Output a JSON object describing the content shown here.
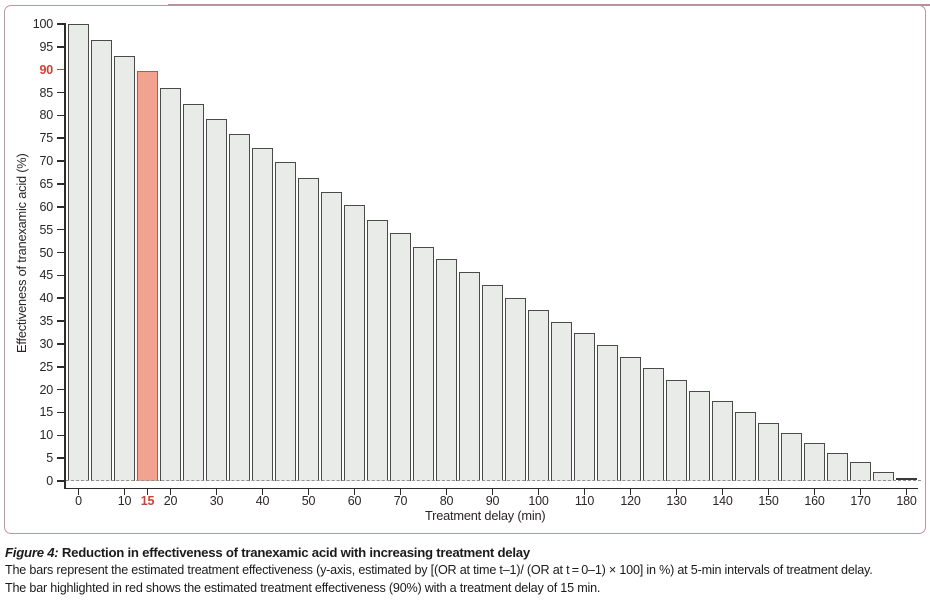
{
  "figure": {
    "caption": {
      "label": "Figure 4:",
      "title": " Reduction in effectiveness of tranexamic acid with increasing treatment delay",
      "line2": "The bars represent the estimated treatment effectiveness (y-axis, estimated by [(OR at time t–1)/ (OR at t = 0–1) × 100] in %) at 5-min intervals of treatment delay.",
      "line3": "The bar highlighted in red shows the estimated treatment effectiveness (90%) with a treatment delay of 15 min."
    }
  },
  "chart_data": {
    "type": "bar",
    "title": "",
    "xlabel": "Treatment delay (min)",
    "ylabel": "Effectiveness of tranexamic acid (%)",
    "categories": [
      0,
      5,
      10,
      15,
      20,
      25,
      30,
      35,
      40,
      45,
      50,
      55,
      60,
      65,
      70,
      75,
      80,
      85,
      90,
      95,
      100,
      105,
      110,
      115,
      120,
      125,
      130,
      135,
      140,
      145,
      150,
      155,
      160,
      165,
      170,
      175,
      180
    ],
    "values": [
      100,
      96.4,
      92.9,
      89.8,
      86.0,
      82.6,
      79.3,
      76.0,
      72.8,
      69.7,
      66.4,
      63.3,
      60.3,
      57.2,
      54.3,
      51.3,
      48.5,
      45.7,
      42.9,
      40.1,
      37.5,
      34.9,
      32.3,
      29.7,
      27.2,
      24.7,
      22.2,
      19.8,
      17.4,
      15.1,
      12.8,
      10.5,
      8.3,
      6.2,
      4.2,
      1.9,
      0.2
    ],
    "highlight_category": 15,
    "highlight_value_label": "90",
    "x_ticks": [
      0,
      10,
      15,
      20,
      30,
      40,
      50,
      60,
      70,
      80,
      90,
      100,
      110,
      120,
      130,
      140,
      150,
      160,
      170,
      180
    ],
    "x_tick_red": 15,
    "y_ticks": [
      0,
      5,
      10,
      15,
      20,
      25,
      30,
      35,
      40,
      45,
      50,
      55,
      60,
      65,
      70,
      75,
      80,
      85,
      90,
      95,
      100
    ],
    "y_tick_red": 90,
    "ylim": [
      0,
      100
    ],
    "grid": "dashed zero baseline only",
    "legend": "none",
    "colors": {
      "bar_fill": "#e9ebe8",
      "bar_stroke": "#4a4a4a",
      "highlight_fill": "#f0a38e",
      "highlight_stroke": "#c94f44",
      "accent_red": "#d23f34",
      "frame_border": "#c395a4",
      "axis": "#2e2b2c"
    }
  }
}
